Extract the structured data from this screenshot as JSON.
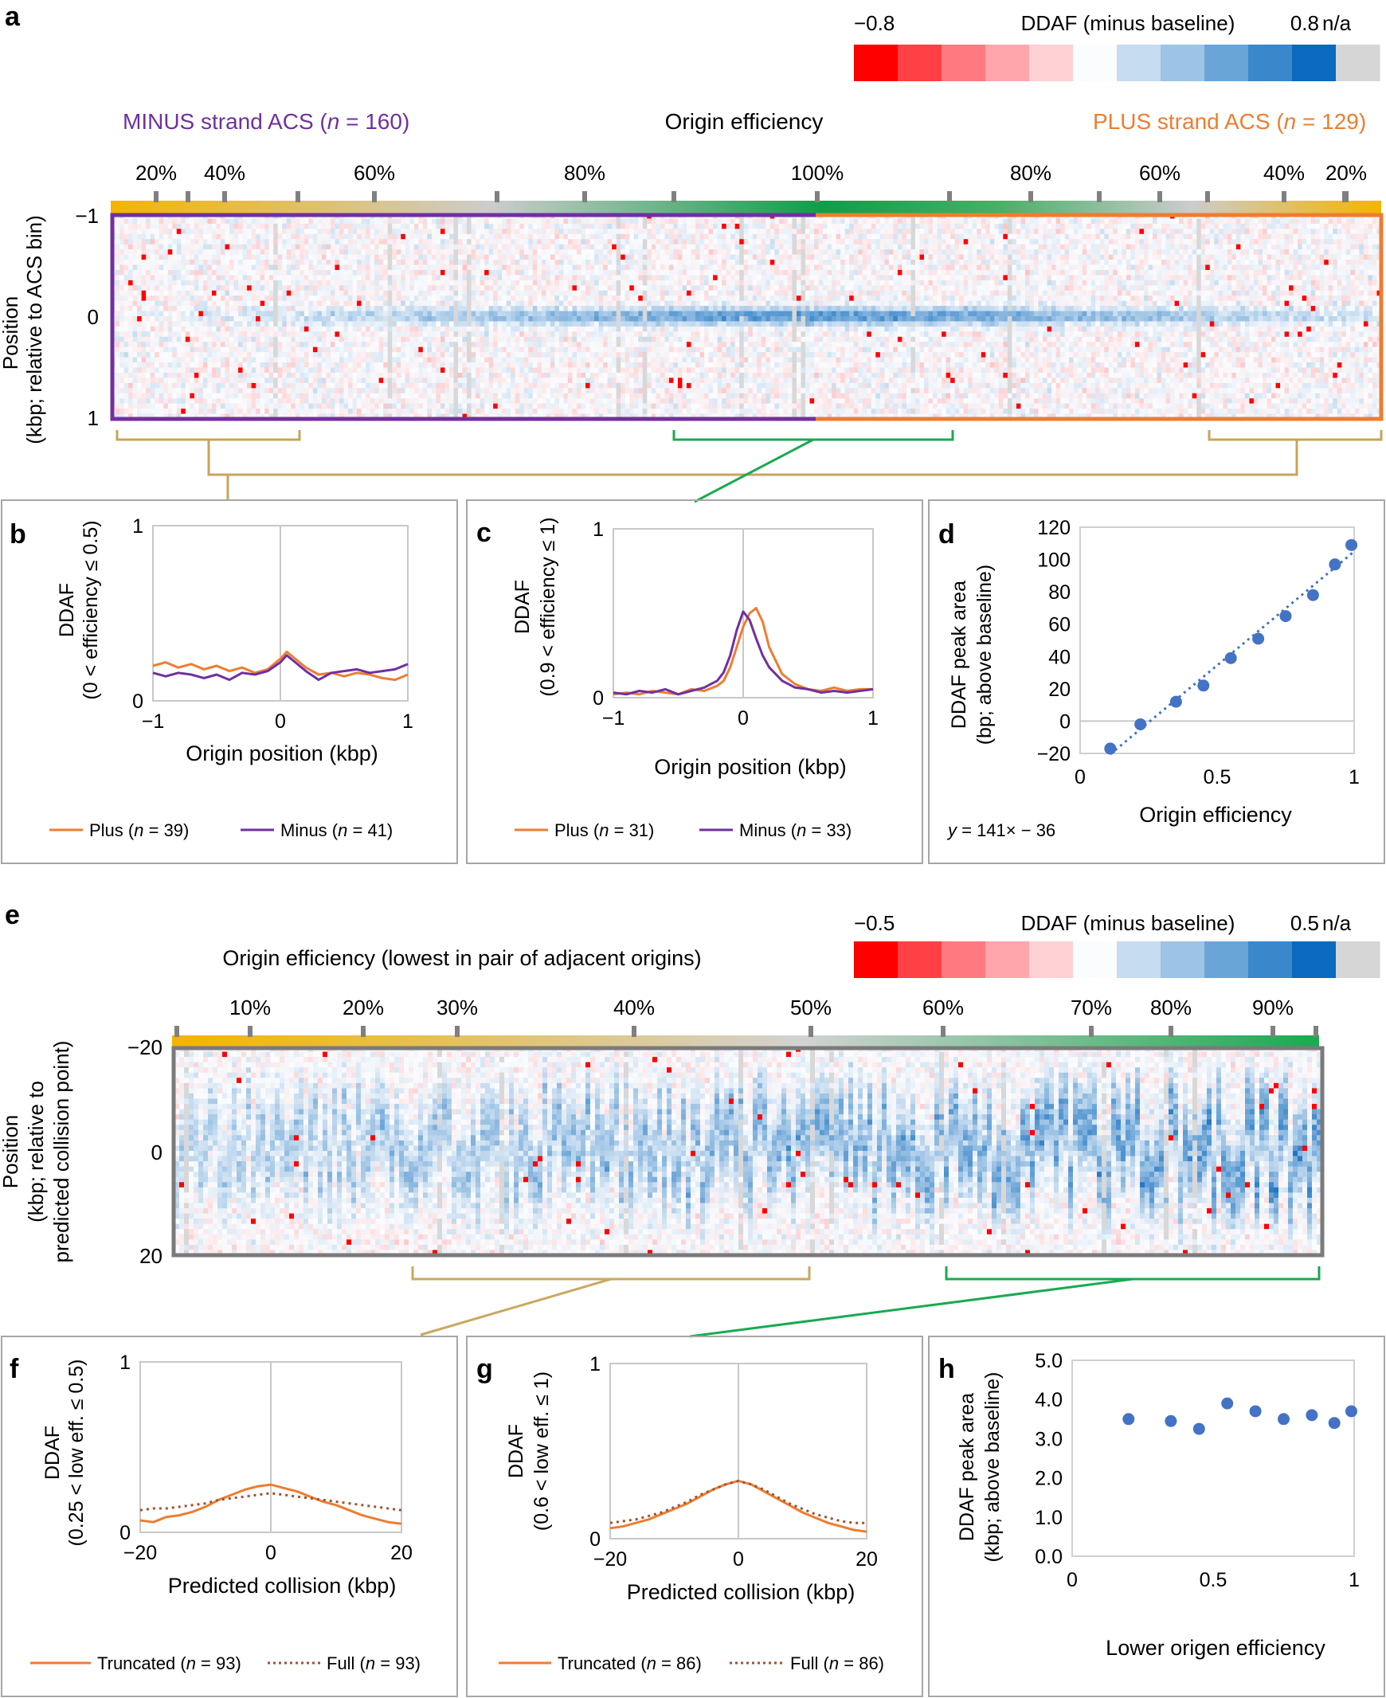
{
  "colors": {
    "minus": "#7030a0",
    "plus": "#ed7d31",
    "scatter": "#4472c4",
    "green": "#1aa950",
    "gold": "#f4b400",
    "tan": "#c8a960",
    "full": "#a0522d",
    "panel_border": "#a6a6a6",
    "heat_border": "#7a7a7a"
  },
  "panel_a": {
    "letter": "a",
    "scale": {
      "min_label": "−0.8",
      "title": "DDAF (minus baseline)",
      "max_label": "0.8",
      "na_label": "n/a",
      "swatches": [
        "#ff0000",
        "#ff4044",
        "#ff7a80",
        "#ffa6ac",
        "#ffd0d4",
        "#fbfcfe",
        "#c6dcf0",
        "#9dc3e6",
        "#6aa5d8",
        "#3b87cb",
        "#0b6abd",
        "#d6d6d6"
      ]
    },
    "minus_label": "MINUS strand ACS (",
    "minus_n": "n",
    "minus_count": " = 160)",
    "center_label": "Origin efficiency",
    "plus_label": "PLUS strand ACS (",
    "plus_n": "n",
    "plus_count": " = 129)",
    "top_ticks": [
      "20%",
      "40%",
      "60%",
      "80%",
      "100%",
      "80%",
      "60%",
      "40%",
      "20%"
    ],
    "ylabel_1": "Position",
    "ylabel_2": "(kbp; relative to ACS bin)",
    "y_ticks": [
      "−1",
      "0",
      "1"
    ]
  },
  "panel_b": {
    "letter": "b",
    "ylabel_1": "DDAF",
    "ylabel_2": "(0 < efficiency ≤ 0.5)",
    "xlabel": "Origin position (kbp)",
    "x_ticks": [
      "−1",
      "0",
      "1"
    ],
    "y_ticks": [
      "0",
      "1"
    ],
    "legend_plus": "Plus (",
    "legend_plus_n": "n",
    "legend_plus_count": " = 39)",
    "legend_minus": "Minus (",
    "legend_minus_n": "n",
    "legend_minus_count": " = 41)"
  },
  "panel_c": {
    "letter": "c",
    "ylabel_1": "DDAF",
    "ylabel_2": "(0.9 < efficiency ≤ 1)",
    "xlabel": "Origin position (kbp)",
    "x_ticks": [
      "−1",
      "0",
      "1"
    ],
    "y_ticks": [
      "0",
      "1"
    ],
    "legend_plus": "Plus (",
    "legend_plus_n": "n",
    "legend_plus_count": " = 31)",
    "legend_minus": "Minus (",
    "legend_minus_n": "n",
    "legend_minus_count": " = 33)"
  },
  "panel_d": {
    "letter": "d",
    "ylabel_1": "DDAF peak area",
    "ylabel_2": "(bp; above baseline)",
    "xlabel": "Origin efficiency",
    "x_ticks": [
      "0",
      "0.5",
      "1"
    ],
    "y_ticks": [
      "−20",
      "0",
      "20",
      "40",
      "60",
      "80",
      "100",
      "120"
    ],
    "equation_y": "y",
    "equation_rest": " = 141× − 36"
  },
  "panel_e": {
    "letter": "e",
    "title": "Origin efficiency (lowest in pair of adjacent origins)",
    "scale": {
      "min_label": "−0.5",
      "title": "DDAF (minus baseline)",
      "max_label": "0.5",
      "na_label": "n/a"
    },
    "top_ticks": [
      "10%",
      "20%",
      "30%",
      "40%",
      "50%",
      "60%",
      "70%",
      "80%",
      "90%"
    ],
    "ylabel_1": "Position",
    "ylabel_2": "(kbp; relative to",
    "ylabel_3": "predicted collision point)",
    "y_ticks": [
      "−20",
      "0",
      "20"
    ]
  },
  "panel_f": {
    "letter": "f",
    "ylabel_1": "DDAF",
    "ylabel_2": "(0.25 < low eff. ≤ 0.5)",
    "xlabel": "Predicted collision (kbp)",
    "x_ticks": [
      "−20",
      "0",
      "20"
    ],
    "y_ticks": [
      "0",
      "1"
    ],
    "legend_trunc": "Truncated (",
    "legend_trunc_n": "n",
    "legend_trunc_count": " = 93)",
    "legend_full": "Full (",
    "legend_full_n": "n",
    "legend_full_count": " = 93)"
  },
  "panel_g": {
    "letter": "g",
    "ylabel_1": "DDAF",
    "ylabel_2": "(0.6 < low eff. ≤ 1)",
    "xlabel": "Predicted collision (kbp)",
    "x_ticks": [
      "−20",
      "0",
      "20"
    ],
    "y_ticks": [
      "0",
      "1"
    ],
    "legend_trunc": "Truncated (",
    "legend_trunc_n": "n",
    "legend_trunc_count": " = 86)",
    "legend_full": "Full (",
    "legend_full_n": "n",
    "legend_full_count": " = 86)"
  },
  "panel_h": {
    "letter": "h",
    "ylabel_1": "DDAF peak area",
    "ylabel_2": "(kbp; above baseline)",
    "xlabel": "Lower origen efficiency",
    "x_ticks": [
      "0",
      "0.5",
      "1"
    ],
    "y_ticks": [
      "0.0",
      "1.0",
      "2.0",
      "3.0",
      "4.0",
      "5.0"
    ]
  },
  "chart_data": [
    {
      "id": "a",
      "type": "heatmap",
      "title": "Origin efficiency",
      "ylabel": "Position (kbp; relative to ACS bin)",
      "ylim": [
        -1,
        1
      ],
      "groups": [
        {
          "name": "MINUS strand ACS",
          "n": 160
        },
        {
          "name": "PLUS strand ACS",
          "n": 129
        }
      ],
      "efficiency_ticks": [
        "20%",
        "40%",
        "60%",
        "80%",
        "100%",
        "80%",
        "60%",
        "40%",
        "20%"
      ],
      "color_range": [
        -0.8,
        0.8
      ]
    },
    {
      "id": "b",
      "type": "line",
      "xlabel": "Origin position (kbp)",
      "ylabel": "DDAF (0 < efficiency ≤ 0.5)",
      "xlim": [
        -1,
        1
      ],
      "ylim": [
        0,
        1
      ],
      "x": [
        -1,
        -0.9,
        -0.8,
        -0.7,
        -0.6,
        -0.5,
        -0.4,
        -0.3,
        -0.2,
        -0.1,
        0,
        0.05,
        0.1,
        0.2,
        0.3,
        0.4,
        0.5,
        0.6,
        0.7,
        0.8,
        0.9,
        1
      ],
      "series": [
        {
          "name": "Plus (n = 39)",
          "values": [
            0.2,
            0.22,
            0.19,
            0.21,
            0.18,
            0.2,
            0.17,
            0.19,
            0.16,
            0.18,
            0.24,
            0.28,
            0.25,
            0.19,
            0.15,
            0.16,
            0.14,
            0.16,
            0.15,
            0.13,
            0.12,
            0.15
          ]
        },
        {
          "name": "Minus (n = 41)",
          "values": [
            0.16,
            0.14,
            0.16,
            0.15,
            0.13,
            0.15,
            0.12,
            0.16,
            0.15,
            0.17,
            0.22,
            0.26,
            0.23,
            0.17,
            0.12,
            0.16,
            0.17,
            0.18,
            0.16,
            0.17,
            0.18,
            0.21
          ]
        }
      ]
    },
    {
      "id": "c",
      "type": "line",
      "xlabel": "Origin position (kbp)",
      "ylabel": "DDAF (0.9 < efficiency ≤ 1)",
      "xlim": [
        -1,
        1
      ],
      "ylim": [
        0,
        1
      ],
      "x": [
        -1,
        -0.9,
        -0.8,
        -0.7,
        -0.6,
        -0.5,
        -0.4,
        -0.3,
        -0.2,
        -0.15,
        -0.1,
        -0.05,
        0,
        0.05,
        0.1,
        0.15,
        0.2,
        0.3,
        0.4,
        0.5,
        0.6,
        0.7,
        0.8,
        0.9,
        1
      ],
      "series": [
        {
          "name": "Plus (n = 31)",
          "values": [
            0.02,
            0.03,
            0.02,
            0.04,
            0.03,
            0.02,
            0.05,
            0.04,
            0.07,
            0.1,
            0.18,
            0.3,
            0.42,
            0.5,
            0.53,
            0.45,
            0.3,
            0.14,
            0.08,
            0.05,
            0.04,
            0.06,
            0.04,
            0.05,
            0.05
          ]
        },
        {
          "name": "Minus (n = 33)",
          "values": [
            0.03,
            0.02,
            0.04,
            0.03,
            0.05,
            0.02,
            0.04,
            0.06,
            0.1,
            0.15,
            0.25,
            0.4,
            0.51,
            0.46,
            0.35,
            0.25,
            0.18,
            0.1,
            0.06,
            0.05,
            0.03,
            0.04,
            0.03,
            0.04,
            0.05
          ]
        }
      ]
    },
    {
      "id": "d",
      "type": "scatter",
      "xlabel": "Origin efficiency",
      "ylabel": "DDAF peak area (bp; above baseline)",
      "xlim": [
        0,
        1
      ],
      "ylim": [
        -20,
        120
      ],
      "x": [
        0.11,
        0.22,
        0.35,
        0.45,
        0.55,
        0.65,
        0.75,
        0.85,
        0.93,
        0.99
      ],
      "y": [
        -17,
        -2,
        12,
        22,
        39,
        51,
        65,
        78,
        97,
        109
      ],
      "trendline": {
        "slope": 141,
        "intercept": -36,
        "label": "y = 141× − 36"
      }
    },
    {
      "id": "e",
      "type": "heatmap",
      "title": "Origin efficiency (lowest in pair of adjacent origins)",
      "ylabel": "Position (kbp; relative to predicted collision point)",
      "ylim": [
        -20,
        20
      ],
      "efficiency_ticks": [
        "10%",
        "20%",
        "30%",
        "40%",
        "50%",
        "60%",
        "70%",
        "80%",
        "90%"
      ],
      "color_range": [
        -0.5,
        0.5
      ]
    },
    {
      "id": "f",
      "type": "line",
      "xlabel": "Predicted collision (kbp)",
      "ylabel": "DDAF (0.25 < low eff. ≤ 0.5)",
      "xlim": [
        -20,
        20
      ],
      "ylim": [
        0,
        1
      ],
      "x": [
        -20,
        -18,
        -16,
        -14,
        -12,
        -10,
        -8,
        -6,
        -4,
        -2,
        0,
        2,
        4,
        6,
        8,
        10,
        12,
        14,
        16,
        18,
        20
      ],
      "series": [
        {
          "name": "Truncated (n = 93)",
          "values": [
            0.07,
            0.06,
            0.09,
            0.1,
            0.12,
            0.15,
            0.19,
            0.22,
            0.25,
            0.27,
            0.28,
            0.26,
            0.24,
            0.21,
            0.18,
            0.16,
            0.13,
            0.1,
            0.08,
            0.06,
            0.05
          ]
        },
        {
          "name": "Full (n = 93)",
          "values": [
            0.13,
            0.14,
            0.14,
            0.15,
            0.16,
            0.17,
            0.19,
            0.2,
            0.21,
            0.22,
            0.23,
            0.22,
            0.21,
            0.2,
            0.19,
            0.18,
            0.17,
            0.16,
            0.15,
            0.14,
            0.13
          ]
        }
      ]
    },
    {
      "id": "g",
      "type": "line",
      "xlabel": "Predicted collision (kbp)",
      "ylabel": "DDAF (0.6 < low eff. ≤ 1)",
      "xlim": [
        -20,
        20
      ],
      "ylim": [
        0,
        1
      ],
      "x": [
        -20,
        -18,
        -16,
        -14,
        -12,
        -10,
        -8,
        -6,
        -4,
        -2,
        0,
        2,
        4,
        6,
        8,
        10,
        12,
        14,
        16,
        18,
        20
      ],
      "series": [
        {
          "name": "Truncated (n = 86)",
          "values": [
            0.06,
            0.07,
            0.09,
            0.11,
            0.14,
            0.17,
            0.2,
            0.24,
            0.28,
            0.31,
            0.33,
            0.31,
            0.27,
            0.23,
            0.19,
            0.15,
            0.12,
            0.09,
            0.07,
            0.05,
            0.04
          ]
        },
        {
          "name": "Full (n = 86)",
          "values": [
            0.09,
            0.1,
            0.11,
            0.13,
            0.15,
            0.18,
            0.21,
            0.25,
            0.28,
            0.31,
            0.33,
            0.31,
            0.28,
            0.24,
            0.2,
            0.17,
            0.14,
            0.12,
            0.1,
            0.09,
            0.09
          ]
        }
      ]
    },
    {
      "id": "h",
      "type": "scatter",
      "xlabel": "Lower origen efficiency",
      "ylabel": "DDAF peak area (kbp; above baseline)",
      "xlim": [
        0,
        1
      ],
      "ylim": [
        0,
        5
      ],
      "x": [
        0.2,
        0.35,
        0.45,
        0.55,
        0.65,
        0.75,
        0.85,
        0.93,
        0.99
      ],
      "y": [
        3.5,
        3.45,
        3.25,
        3.9,
        3.7,
        3.5,
        3.6,
        3.4,
        3.7
      ]
    }
  ]
}
